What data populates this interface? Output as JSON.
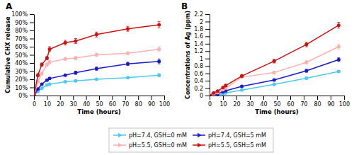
{
  "chart_data": [
    {
      "type": "line",
      "title": "A",
      "x_label": "Time (hours)",
      "y_label": "Cumulative CHX release",
      "x": [
        0,
        3,
        6,
        10,
        12,
        24,
        32,
        48,
        72,
        96
      ],
      "series": [
        {
          "name": "pH=7.4, GSH=0 mM",
          "color": "#4DC8F0",
          "marker": "circle",
          "values": [
            0,
            5,
            9,
            13,
            14,
            17,
            18,
            20,
            22,
            25
          ],
          "errors": [
            0,
            1,
            1,
            1,
            1,
            1,
            1,
            1,
            1,
            2
          ]
        },
        {
          "name": "pH=7.4, GSH=5 mM",
          "color": "#1A1ACC",
          "marker": "circle",
          "values": [
            0,
            8,
            14,
            19,
            21,
            25,
            28,
            33,
            39,
            42
          ],
          "errors": [
            0,
            1,
            1,
            1,
            1,
            1,
            2,
            2,
            2,
            3
          ]
        },
        {
          "name": "pH=5.5, GSH=0 mM",
          "color": "#FFB0B0",
          "marker": "circle",
          "values": [
            0,
            17,
            27,
            38,
            41,
            45,
            46,
            50,
            52,
            57
          ],
          "errors": [
            0,
            1,
            2,
            2,
            2,
            2,
            2,
            2,
            2,
            3
          ]
        },
        {
          "name": "pH=5.5, GSH=5 mM",
          "color": "#CC1111",
          "marker": "circle",
          "values": [
            0,
            25,
            38,
            46,
            57,
            65,
            67,
            75,
            82,
            87
          ],
          "errors": [
            0,
            2,
            2,
            2,
            3,
            3,
            3,
            3,
            3,
            4
          ]
        }
      ],
      "xlim": [
        0,
        100
      ],
      "xticks": [
        0,
        10,
        20,
        30,
        40,
        50,
        60,
        70,
        80,
        90,
        100
      ],
      "ylim": [
        0,
        100
      ],
      "yticks": [
        {
          "value": 0,
          "label": "0%"
        },
        {
          "value": 10,
          "label": "10%"
        },
        {
          "value": 20,
          "label": "20%"
        },
        {
          "value": 30,
          "label": "30%"
        },
        {
          "value": 40,
          "label": "40%"
        },
        {
          "value": 50,
          "label": "50%"
        },
        {
          "value": 60,
          "label": "60%"
        },
        {
          "value": 70,
          "label": "70%"
        },
        {
          "value": 80,
          "label": "80%"
        },
        {
          "value": 90,
          "label": "90%"
        },
        {
          "value": 100,
          "label": "100%"
        }
      ],
      "legend": "bottom"
    },
    {
      "type": "line",
      "title": "B",
      "x_label": "Time (hours)",
      "y_label": "Concentrations of Ag (ppm)",
      "x": [
        0,
        3,
        6,
        10,
        12,
        24,
        48,
        72,
        96
      ],
      "series": [
        {
          "color": "#4DC8F0",
          "marker": "circle",
          "values": [
            0,
            0.01,
            0.02,
            0.05,
            0.07,
            0.15,
            0.3,
            0.47,
            0.65
          ],
          "errors": [
            0,
            0.005,
            0.005,
            0.01,
            0.01,
            0.02,
            0.02,
            0.03,
            0.03
          ]
        },
        {
          "color": "#1A1ACC",
          "marker": "circle",
          "values": [
            0,
            0.02,
            0.05,
            0.1,
            0.13,
            0.25,
            0.42,
            0.67,
            0.97
          ],
          "errors": [
            0,
            0.005,
            0.01,
            0.02,
            0.02,
            0.02,
            0.03,
            0.04,
            0.05
          ]
        },
        {
          "color": "#FFB0B0",
          "marker": "circle",
          "values": [
            0,
            0.04,
            0.08,
            0.16,
            0.2,
            0.5,
            0.62,
            0.9,
            1.32
          ],
          "errors": [
            0,
            0.01,
            0.01,
            0.02,
            0.02,
            0.03,
            0.04,
            0.05,
            0.07
          ]
        },
        {
          "color": "#CC1111",
          "marker": "circle",
          "values": [
            0,
            0.07,
            0.12,
            0.22,
            0.27,
            0.53,
            0.93,
            1.38,
            1.9
          ],
          "errors": [
            0,
            0.01,
            0.02,
            0.02,
            0.03,
            0.04,
            0.05,
            0.06,
            0.08
          ]
        }
      ],
      "xlim": [
        0,
        100
      ],
      "xticks": [
        0,
        10,
        20,
        30,
        40,
        50,
        60,
        70,
        80,
        90,
        100
      ],
      "ylim": [
        0,
        2.2
      ],
      "yticks": [
        0,
        0.2,
        0.4,
        0.6,
        0.8,
        1,
        1.2,
        1.4,
        1.6,
        1.8,
        2,
        2.2
      ]
    }
  ]
}
